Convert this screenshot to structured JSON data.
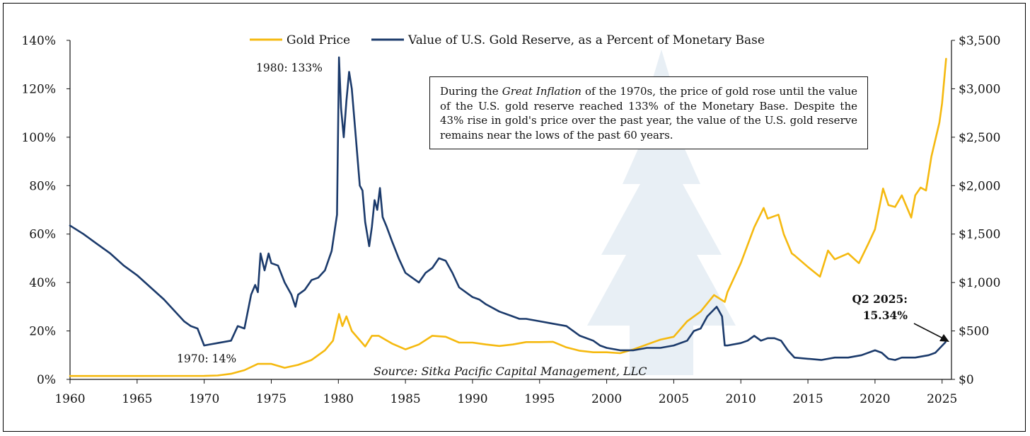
{
  "chart_data": {
    "type": "line",
    "legend": {
      "placement": "top-center",
      "entries": [
        {
          "label": "Gold Price",
          "color": "#F5B90F"
        },
        {
          "label": "Value of U.S. Gold Reserve, as a Percent of Monetary Base",
          "color": "#1B3A6B"
        }
      ]
    },
    "x_ticks": [
      "1960",
      "1965",
      "1970",
      "1975",
      "1980",
      "1985",
      "1990",
      "1995",
      "2000",
      "2005",
      "2010",
      "2015",
      "2020",
      "2025"
    ],
    "xlim": [
      1960,
      2025.7
    ],
    "left_axis": {
      "ticks": [
        "0%",
        "20%",
        "40%",
        "60%",
        "80%",
        "100%",
        "120%",
        "140%"
      ],
      "ylim": [
        0,
        140
      ]
    },
    "right_axis": {
      "ticks": [
        "$0",
        "$500",
        "$1,000",
        "$1,500",
        "$2,000",
        "$2,500",
        "$3,000",
        "$3,500"
      ],
      "ylim": [
        0,
        3500
      ]
    },
    "series": [
      {
        "name": "Value of U.S. Gold Reserve, as a Percent of Monetary Base",
        "axis": "left",
        "color": "#1B3A6B",
        "points": [
          [
            1960,
            63.5
          ],
          [
            1961,
            60
          ],
          [
            1962,
            56
          ],
          [
            1963,
            52
          ],
          [
            1964,
            47
          ],
          [
            1965,
            43
          ],
          [
            1966,
            38
          ],
          [
            1967,
            33
          ],
          [
            1968,
            27
          ],
          [
            1968.5,
            24
          ],
          [
            1969,
            22
          ],
          [
            1969.5,
            21
          ],
          [
            1970,
            14
          ],
          [
            1970.5,
            14.5
          ],
          [
            1971,
            15
          ],
          [
            1972,
            16
          ],
          [
            1972.5,
            22
          ],
          [
            1973,
            21
          ],
          [
            1973.5,
            35
          ],
          [
            1973.8,
            39
          ],
          [
            1974,
            36
          ],
          [
            1974.2,
            52
          ],
          [
            1974.5,
            45
          ],
          [
            1974.8,
            52
          ],
          [
            1975,
            48
          ],
          [
            1975.5,
            47
          ],
          [
            1976,
            40
          ],
          [
            1976.5,
            35
          ],
          [
            1976.8,
            30
          ],
          [
            1977,
            35
          ],
          [
            1977.5,
            37
          ],
          [
            1978,
            41
          ],
          [
            1978.5,
            42
          ],
          [
            1979,
            45
          ],
          [
            1979.5,
            53
          ],
          [
            1979.9,
            68
          ],
          [
            1980.05,
            133
          ],
          [
            1980.2,
            112
          ],
          [
            1980.4,
            100
          ],
          [
            1980.6,
            115
          ],
          [
            1980.8,
            127
          ],
          [
            1981,
            120
          ],
          [
            1981.3,
            100
          ],
          [
            1981.6,
            80
          ],
          [
            1981.8,
            78
          ],
          [
            1982,
            65
          ],
          [
            1982.3,
            55
          ],
          [
            1982.5,
            63
          ],
          [
            1982.7,
            74
          ],
          [
            1982.9,
            70
          ],
          [
            1983.1,
            79
          ],
          [
            1983.3,
            67
          ],
          [
            1983.6,
            63
          ],
          [
            1984,
            57
          ],
          [
            1984.5,
            50
          ],
          [
            1985,
            44
          ],
          [
            1985.5,
            42
          ],
          [
            1986,
            40
          ],
          [
            1986.5,
            44
          ],
          [
            1987,
            46
          ],
          [
            1987.5,
            50
          ],
          [
            1988,
            49
          ],
          [
            1988.5,
            44
          ],
          [
            1989,
            38
          ],
          [
            1990,
            34
          ],
          [
            1990.5,
            33
          ],
          [
            1991,
            31
          ],
          [
            1992,
            28
          ],
          [
            1993,
            26
          ],
          [
            1993.5,
            25
          ],
          [
            1994,
            25
          ],
          [
            1995,
            24
          ],
          [
            1996,
            23
          ],
          [
            1997,
            22
          ],
          [
            1997.5,
            20
          ],
          [
            1998,
            18
          ],
          [
            1999,
            16
          ],
          [
            1999.5,
            14
          ],
          [
            2000,
            13
          ],
          [
            2001,
            12
          ],
          [
            2002,
            12
          ],
          [
            2003,
            13
          ],
          [
            2004,
            13
          ],
          [
            2005,
            14
          ],
          [
            2006,
            16
          ],
          [
            2006.5,
            20
          ],
          [
            2007,
            21
          ],
          [
            2007.5,
            26
          ],
          [
            2008.2,
            30
          ],
          [
            2008.6,
            26
          ],
          [
            2008.8,
            14
          ],
          [
            2009,
            14
          ],
          [
            2010,
            15
          ],
          [
            2010.5,
            16
          ],
          [
            2011,
            18
          ],
          [
            2011.5,
            16
          ],
          [
            2012,
            17
          ],
          [
            2012.5,
            17
          ],
          [
            2013,
            16
          ],
          [
            2013.5,
            12
          ],
          [
            2014,
            9
          ],
          [
            2015,
            8.5
          ],
          [
            2016,
            8
          ],
          [
            2017,
            9
          ],
          [
            2018,
            9
          ],
          [
            2019,
            10
          ],
          [
            2020,
            12
          ],
          [
            2020.5,
            11
          ],
          [
            2021,
            8.5
          ],
          [
            2021.5,
            8
          ],
          [
            2022,
            9
          ],
          [
            2023,
            9
          ],
          [
            2024,
            10
          ],
          [
            2024.5,
            11
          ],
          [
            2025.25,
            15.34
          ]
        ]
      },
      {
        "name": "Gold Price",
        "axis": "right",
        "color": "#F5B90F",
        "points": [
          [
            1960,
            35
          ],
          [
            1965,
            35
          ],
          [
            1970,
            36
          ],
          [
            1971,
            40
          ],
          [
            1972,
            58
          ],
          [
            1973,
            95
          ],
          [
            1974,
            160
          ],
          [
            1975,
            160
          ],
          [
            1976,
            120
          ],
          [
            1977,
            150
          ],
          [
            1978,
            200
          ],
          [
            1979,
            300
          ],
          [
            1979.6,
            400
          ],
          [
            1980.05,
            675
          ],
          [
            1980.3,
            550
          ],
          [
            1980.6,
            650
          ],
          [
            1981,
            500
          ],
          [
            1981.5,
            420
          ],
          [
            1982,
            340
          ],
          [
            1982.5,
            450
          ],
          [
            1983,
            450
          ],
          [
            1984,
            370
          ],
          [
            1985,
            310
          ],
          [
            1986,
            360
          ],
          [
            1987,
            450
          ],
          [
            1988,
            440
          ],
          [
            1989,
            380
          ],
          [
            1990,
            380
          ],
          [
            1991,
            360
          ],
          [
            1992,
            345
          ],
          [
            1993,
            360
          ],
          [
            1994,
            385
          ],
          [
            1995,
            385
          ],
          [
            1996,
            388
          ],
          [
            1997,
            330
          ],
          [
            1998,
            295
          ],
          [
            1999,
            280
          ],
          [
            2000,
            280
          ],
          [
            2001,
            270
          ],
          [
            2002,
            310
          ],
          [
            2003,
            360
          ],
          [
            2004,
            410
          ],
          [
            2005,
            440
          ],
          [
            2006,
            600
          ],
          [
            2007,
            700
          ],
          [
            2008,
            870
          ],
          [
            2008.8,
            800
          ],
          [
            2009,
            900
          ],
          [
            2010,
            1200
          ],
          [
            2011,
            1570
          ],
          [
            2011.7,
            1770
          ],
          [
            2012,
            1660
          ],
          [
            2012.8,
            1700
          ],
          [
            2013.2,
            1500
          ],
          [
            2013.8,
            1300
          ],
          [
            2014,
            1280
          ],
          [
            2015,
            1160
          ],
          [
            2015.9,
            1060
          ],
          [
            2016.5,
            1330
          ],
          [
            2017,
            1240
          ],
          [
            2018,
            1300
          ],
          [
            2018.8,
            1200
          ],
          [
            2019.5,
            1400
          ],
          [
            2020,
            1550
          ],
          [
            2020.6,
            1970
          ],
          [
            2021,
            1800
          ],
          [
            2021.5,
            1780
          ],
          [
            2022,
            1900
          ],
          [
            2022.7,
            1670
          ],
          [
            2023,
            1900
          ],
          [
            2023.4,
            1980
          ],
          [
            2023.8,
            1950
          ],
          [
            2024.2,
            2300
          ],
          [
            2024.8,
            2650
          ],
          [
            2025,
            2850
          ],
          [
            2025.3,
            3310
          ]
        ]
      }
    ],
    "annotations": {
      "peak_label": "1980: 133%",
      "low_label": "1970: 14%",
      "latest_label_line1": "Q2 2025:",
      "latest_label_line2": "15.34%",
      "source": "Source: Sitka Pacific Capital Management, LLC",
      "note_prefix": "During the ",
      "note_italic": "Great Inflation",
      "note_rest": " of the 1970s, the price of gold rose until the value of the U.S. gold reserve reached 133% of the Monetary Base. Despite the 43% rise in gold's price over the past year, the value of the U.S. gold reserve remains near the lows of the past 60 years."
    }
  }
}
